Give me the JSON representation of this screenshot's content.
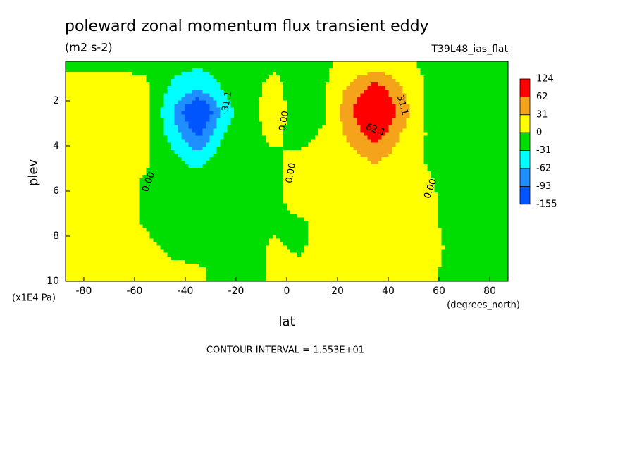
{
  "chart_data": {
    "type": "contour",
    "title": "poleward zonal momentum flux transient eddy",
    "subtitle": "(m2 s-2)",
    "dataset": "T39L48_ias_flat",
    "x_label": "lat",
    "x_units": "(degrees_north)",
    "y_label": "plev",
    "y_units": "(x1E4 Pa)",
    "footer": "CONTOUR INTERVAL = 1.553E+01",
    "xlim": [
      -87.2,
      87.2
    ],
    "xticks": [
      -80,
      -60,
      -40,
      -20,
      0,
      20,
      40,
      60,
      80
    ],
    "ylim": [
      10,
      0.25
    ],
    "yticks": [
      2,
      4,
      6,
      8,
      10
    ],
    "x": [
      -85,
      -75,
      -65,
      -55,
      -45,
      -35,
      -25,
      -15,
      -5,
      5,
      15,
      25,
      35,
      45,
      55,
      65,
      75,
      85
    ],
    "y": [
      0.5,
      1.5,
      2.5,
      3.5,
      4.5,
      5.5,
      6.5,
      7.5,
      8.5,
      9.5
    ],
    "z": [
      [
        -2,
        -2,
        -2,
        -2,
        -20,
        -30,
        -15,
        -3,
        -2,
        -5,
        -3,
        10,
        20,
        8,
        -5,
        -5,
        -3,
        -2
      ],
      [
        5,
        6,
        6,
        3,
        -40,
        -60,
        -30,
        -5,
        5,
        -8,
        -3,
        40,
        80,
        35,
        -3,
        -6,
        -5,
        -3
      ],
      [
        6,
        8,
        12,
        4,
        -60,
        -150,
        -50,
        -4,
        6,
        -6,
        -2,
        55,
        124,
        50,
        -2,
        -8,
        -8,
        -4
      ],
      [
        6,
        8,
        8,
        3,
        -45,
        -100,
        -30,
        -4,
        3,
        -5,
        2,
        40,
        80,
        30,
        -1,
        -6,
        -6,
        -4
      ],
      [
        5,
        6,
        5,
        2,
        -25,
        -50,
        -15,
        -4,
        -2,
        3,
        6,
        20,
        40,
        15,
        -1,
        -4,
        -4,
        -3
      ],
      [
        5,
        5,
        3,
        -1,
        -10,
        -15,
        -8,
        -4,
        -2,
        4,
        6,
        10,
        12,
        8,
        1,
        -3,
        -3,
        -2
      ],
      [
        4,
        4,
        2,
        -1,
        -4,
        -5,
        -5,
        -4,
        -2,
        3,
        5,
        6,
        6,
        5,
        2,
        -2,
        -3,
        -2
      ],
      [
        3,
        4,
        3,
        -1,
        -4,
        -4,
        -4,
        -3,
        -1,
        -2,
        3,
        5,
        5,
        4,
        2,
        -2,
        -3,
        -2
      ],
      [
        3,
        4,
        4,
        2,
        -2,
        -3,
        -3,
        -2,
        1,
        -1,
        3,
        4,
        4,
        4,
        2,
        -1,
        -2,
        -2
      ],
      [
        2,
        3,
        3,
        3,
        2,
        1,
        -2,
        -2,
        1,
        2,
        3,
        3,
        3,
        3,
        1,
        -1,
        -1,
        -1
      ]
    ],
    "colorbar": {
      "levels": [
        124,
        62,
        31,
        0,
        -31,
        -62,
        -93,
        -155
      ],
      "colors": [
        "#ff0000",
        "#f4a31a",
        "#ffff00",
        "#00dd00",
        "#00ffff",
        "#1f8fff",
        "#0055ff"
      ]
    },
    "annotations": [
      {
        "text": "0.00",
        "x": -54.4,
        "y": 5.6
      },
      {
        "text": "0.00",
        "x": -1,
        "y": 2.9
      },
      {
        "text": "0.00",
        "x": 1.7,
        "y": 5.2
      },
      {
        "text": "0.00",
        "x": 56.7,
        "y": 5.9
      },
      {
        "text": "-31.1",
        "x": -23.6,
        "y": 2.1
      },
      {
        "text": "31.1",
        "x": 45.5,
        "y": 2.2
      },
      {
        "text": "62.1",
        "x": 35,
        "y": 3.3
      }
    ]
  }
}
